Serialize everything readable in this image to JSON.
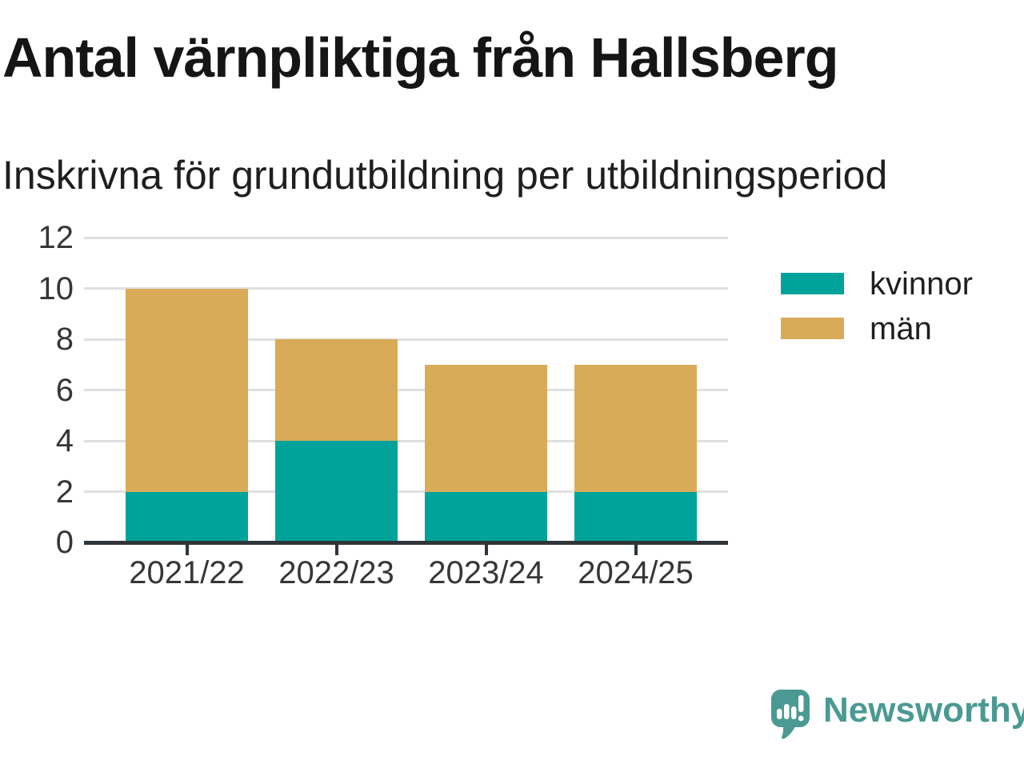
{
  "chart_data": {
    "type": "bar",
    "stacked": true,
    "title": "Antal värnpliktiga från Hallsberg",
    "subtitle": "Inskrivna för grundutbildning per utbildningsperiod",
    "categories": [
      "2021/22",
      "2022/23",
      "2023/24",
      "2024/25"
    ],
    "series": [
      {
        "name": "kvinnor",
        "color": "#00a39a",
        "values": [
          2,
          4,
          2,
          2
        ]
      },
      {
        "name": "män",
        "color": "#d9ab59",
        "values": [
          8,
          4,
          5,
          5
        ]
      }
    ],
    "stack_totals": [
      10,
      8,
      7,
      7
    ],
    "ylim": [
      0,
      12
    ],
    "yticks": [
      0,
      2,
      4,
      6,
      8,
      10,
      12
    ],
    "xlabel": "",
    "ylabel": "",
    "grid": true,
    "legend_position": "right",
    "grid_color": "#e0e0e0",
    "axis_color": "#30353a",
    "tick_label_color": "#363636"
  },
  "footer": {
    "brand": "Newsworthy",
    "brand_color": "#4a9a93"
  }
}
